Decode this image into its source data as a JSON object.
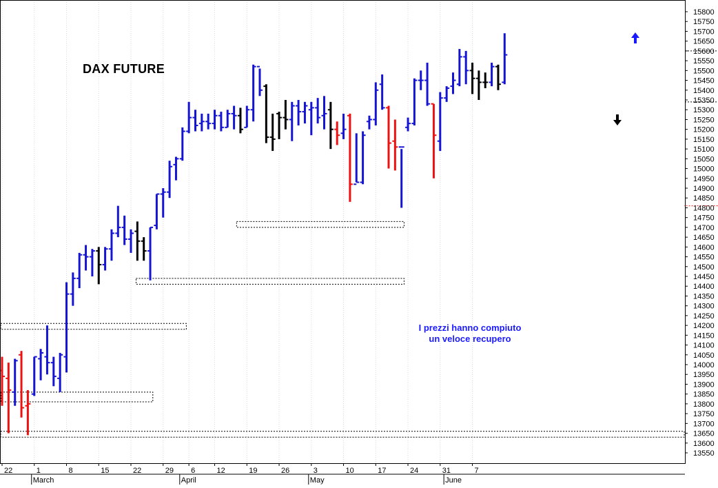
{
  "chart_data": {
    "type": "ohlc",
    "title": "DAX FUTURE",
    "annotation_lines": [
      "I prezzi hanno compiuto",
      "un veloce recupero"
    ],
    "ylim": [
      13520,
      15830
    ],
    "y_ticks": [
      13550,
      13600,
      13650,
      13700,
      13750,
      13800,
      13850,
      13900,
      13950,
      14000,
      14050,
      14100,
      14150,
      14200,
      14250,
      14300,
      14350,
      14400,
      14450,
      14500,
      14550,
      14600,
      14650,
      14700,
      14750,
      14800,
      14850,
      14900,
      14950,
      15000,
      15050,
      15100,
      15150,
      15200,
      15250,
      15300,
      15350,
      15400,
      15450,
      15500,
      15550,
      15600,
      15650,
      15700,
      15750,
      15800
    ],
    "x_ticks": [
      {
        "label": "22",
        "bar": 0
      },
      {
        "label": "1",
        "bar": 5
      },
      {
        "label": "8",
        "bar": 10
      },
      {
        "label": "15",
        "bar": 15
      },
      {
        "label": "22",
        "bar": 20
      },
      {
        "label": "29",
        "bar": 25
      },
      {
        "label": "6",
        "bar": 29
      },
      {
        "label": "12",
        "bar": 33
      },
      {
        "label": "19",
        "bar": 38
      },
      {
        "label": "26",
        "bar": 43
      },
      {
        "label": "3",
        "bar": 48
      },
      {
        "label": "10",
        "bar": 53
      },
      {
        "label": "17",
        "bar": 58
      },
      {
        "label": "24",
        "bar": 63
      },
      {
        "label": "31",
        "bar": 68
      },
      {
        "label": "7",
        "bar": 73
      }
    ],
    "months": [
      {
        "label": "March",
        "bar": 5
      },
      {
        "label": "April",
        "bar": 28
      },
      {
        "label": "May",
        "bar": 48
      },
      {
        "label": "June",
        "bar": 69
      }
    ],
    "bars": [
      {
        "o": 13970,
        "h": 14040,
        "l": 13790,
        "c": 13940,
        "color": "red"
      },
      {
        "o": 13930,
        "h": 14010,
        "l": 13650,
        "c": 13870,
        "color": "red"
      },
      {
        "o": 13860,
        "h": 14030,
        "l": 13790,
        "c": 14020,
        "color": "blue"
      },
      {
        "o": 14050,
        "h": 14070,
        "l": 13730,
        "c": 13780,
        "color": "red"
      },
      {
        "o": 13790,
        "h": 13870,
        "l": 13640,
        "c": 13800,
        "color": "red"
      },
      {
        "o": 13850,
        "h": 14040,
        "l": 13840,
        "c": 14040,
        "color": "blue"
      },
      {
        "o": 14030,
        "h": 14080,
        "l": 13920,
        "c": 14060,
        "color": "blue"
      },
      {
        "o": 14040,
        "h": 14200,
        "l": 13950,
        "c": 14010,
        "color": "blue"
      },
      {
        "o": 14010,
        "h": 14040,
        "l": 13890,
        "c": 13940,
        "color": "blue"
      },
      {
        "o": 13930,
        "h": 14060,
        "l": 13860,
        "c": 14050,
        "color": "blue"
      },
      {
        "o": 14040,
        "h": 14420,
        "l": 13960,
        "c": 14360,
        "color": "blue"
      },
      {
        "o": 14360,
        "h": 14470,
        "l": 14300,
        "c": 14440,
        "color": "blue"
      },
      {
        "o": 14440,
        "h": 14570,
        "l": 14390,
        "c": 14560,
        "color": "blue"
      },
      {
        "o": 14560,
        "h": 14610,
        "l": 14480,
        "c": 14550,
        "color": "blue"
      },
      {
        "o": 14550,
        "h": 14590,
        "l": 14450,
        "c": 14580,
        "color": "blue"
      },
      {
        "o": 14580,
        "h": 14600,
        "l": 14410,
        "c": 14510,
        "color": "black"
      },
      {
        "o": 14510,
        "h": 14600,
        "l": 14480,
        "c": 14590,
        "color": "blue"
      },
      {
        "o": 14590,
        "h": 14690,
        "l": 14530,
        "c": 14670,
        "color": "blue"
      },
      {
        "o": 14670,
        "h": 14810,
        "l": 14650,
        "c": 14700,
        "color": "blue"
      },
      {
        "o": 14700,
        "h": 14760,
        "l": 14610,
        "c": 14640,
        "color": "blue"
      },
      {
        "o": 14640,
        "h": 14690,
        "l": 14570,
        "c": 14670,
        "color": "blue"
      },
      {
        "o": 14680,
        "h": 14730,
        "l": 14530,
        "c": 14630,
        "color": "black"
      },
      {
        "o": 14630,
        "h": 14650,
        "l": 14530,
        "c": 14580,
        "color": "black"
      },
      {
        "o": 14580,
        "h": 14700,
        "l": 14430,
        "c": 14700,
        "color": "blue"
      },
      {
        "o": 14710,
        "h": 14870,
        "l": 14690,
        "c": 14870,
        "color": "blue"
      },
      {
        "o": 14870,
        "h": 14900,
        "l": 14750,
        "c": 14880,
        "color": "blue"
      },
      {
        "o": 14880,
        "h": 15040,
        "l": 14850,
        "c": 15010,
        "color": "blue"
      },
      {
        "o": 15020,
        "h": 15060,
        "l": 14940,
        "c": 15050,
        "color": "blue"
      },
      {
        "o": 15050,
        "h": 15210,
        "l": 15040,
        "c": 15190,
        "color": "blue"
      },
      {
        "o": 15190,
        "h": 15340,
        "l": 15180,
        "c": 15260,
        "color": "blue"
      },
      {
        "o": 15260,
        "h": 15300,
        "l": 15190,
        "c": 15220,
        "color": "blue"
      },
      {
        "o": 15230,
        "h": 15280,
        "l": 15190,
        "c": 15240,
        "color": "blue"
      },
      {
        "o": 15240,
        "h": 15280,
        "l": 15200,
        "c": 15230,
        "color": "blue"
      },
      {
        "o": 15230,
        "h": 15300,
        "l": 15200,
        "c": 15270,
        "color": "blue"
      },
      {
        "o": 15270,
        "h": 15290,
        "l": 15190,
        "c": 15210,
        "color": "blue"
      },
      {
        "o": 15210,
        "h": 15300,
        "l": 15210,
        "c": 15280,
        "color": "blue"
      },
      {
        "o": 15280,
        "h": 15320,
        "l": 15200,
        "c": 15270,
        "color": "blue"
      },
      {
        "o": 15270,
        "h": 15310,
        "l": 15180,
        "c": 15200,
        "color": "black"
      },
      {
        "o": 15210,
        "h": 15320,
        "l": 15210,
        "c": 15300,
        "color": "blue"
      },
      {
        "o": 15300,
        "h": 15530,
        "l": 15240,
        "c": 15520,
        "color": "blue"
      },
      {
        "o": 15520,
        "h": 15510,
        "l": 15370,
        "c": 15400,
        "color": "blue"
      },
      {
        "o": 15420,
        "h": 15430,
        "l": 15130,
        "c": 15160,
        "color": "black"
      },
      {
        "o": 15160,
        "h": 15280,
        "l": 15090,
        "c": 15150,
        "color": "black"
      },
      {
        "o": 15280,
        "h": 15290,
        "l": 15150,
        "c": 15260,
        "color": "black"
      },
      {
        "o": 15260,
        "h": 15350,
        "l": 15200,
        "c": 15250,
        "color": "black"
      },
      {
        "o": 15250,
        "h": 15340,
        "l": 15140,
        "c": 15320,
        "color": "blue"
      },
      {
        "o": 15320,
        "h": 15350,
        "l": 15220,
        "c": 15290,
        "color": "blue"
      },
      {
        "o": 15290,
        "h": 15340,
        "l": 15230,
        "c": 15320,
        "color": "blue"
      },
      {
        "o": 15300,
        "h": 15340,
        "l": 15170,
        "c": 15310,
        "color": "blue"
      },
      {
        "o": 15310,
        "h": 15360,
        "l": 15230,
        "c": 15260,
        "color": "blue"
      },
      {
        "o": 15270,
        "h": 15370,
        "l": 15200,
        "c": 15280,
        "color": "blue"
      },
      {
        "o": 15300,
        "h": 15340,
        "l": 15100,
        "c": 15200,
        "color": "black"
      },
      {
        "o": 15200,
        "h": 15240,
        "l": 15120,
        "c": 15170,
        "color": "red"
      },
      {
        "o": 15180,
        "h": 15280,
        "l": 15150,
        "c": 15200,
        "color": "blue"
      },
      {
        "o": 15270,
        "h": 15280,
        "l": 14830,
        "c": 14920,
        "color": "red"
      },
      {
        "o": 14920,
        "h": 15180,
        "l": 14930,
        "c": 14930,
        "color": "blue"
      },
      {
        "o": 14930,
        "h": 15190,
        "l": 14920,
        "c": 15170,
        "color": "blue"
      },
      {
        "o": 15240,
        "h": 15270,
        "l": 15200,
        "c": 15250,
        "color": "blue"
      },
      {
        "o": 15250,
        "h": 15440,
        "l": 15220,
        "c": 15400,
        "color": "blue"
      },
      {
        "o": 15430,
        "h": 15480,
        "l": 15300,
        "c": 15310,
        "color": "blue"
      },
      {
        "o": 15310,
        "h": 15320,
        "l": 15000,
        "c": 15130,
        "color": "red"
      },
      {
        "o": 15140,
        "h": 15250,
        "l": 14990,
        "c": 15110,
        "color": "red"
      },
      {
        "o": 15110,
        "h": 15100,
        "l": 14800,
        "c": 15110,
        "color": "blue"
      },
      {
        "o": 15210,
        "h": 15260,
        "l": 15190,
        "c": 15230,
        "color": "blue"
      },
      {
        "o": 15230,
        "h": 15460,
        "l": 15220,
        "c": 15450,
        "color": "blue"
      },
      {
        "o": 15450,
        "h": 15500,
        "l": 15400,
        "c": 15450,
        "color": "blue"
      },
      {
        "o": 15450,
        "h": 15540,
        "l": 15320,
        "c": 15330,
        "color": "blue"
      },
      {
        "o": 15330,
        "h": 15330,
        "l": 14950,
        "c": 15170,
        "color": "red"
      },
      {
        "o": 15140,
        "h": 15390,
        "l": 15090,
        "c": 15360,
        "color": "blue"
      },
      {
        "o": 15360,
        "h": 15420,
        "l": 15340,
        "c": 15410,
        "color": "blue"
      },
      {
        "o": 15420,
        "h": 15490,
        "l": 15380,
        "c": 15450,
        "color": "blue"
      },
      {
        "o": 15430,
        "h": 15610,
        "l": 15420,
        "c": 15570,
        "color": "blue"
      },
      {
        "o": 15570,
        "h": 15600,
        "l": 15430,
        "c": 15500,
        "color": "blue"
      },
      {
        "o": 15500,
        "h": 15540,
        "l": 15380,
        "c": 15460,
        "color": "black"
      },
      {
        "o": 15460,
        "h": 15500,
        "l": 15350,
        "c": 15440,
        "color": "black"
      },
      {
        "o": 15440,
        "h": 15490,
        "l": 15410,
        "c": 15440,
        "color": "black"
      },
      {
        "o": 15440,
        "h": 15540,
        "l": 15420,
        "c": 15520,
        "color": "blue"
      },
      {
        "o": 15520,
        "h": 15530,
        "l": 15400,
        "c": 15430,
        "color": "black"
      },
      {
        "o": 15440,
        "h": 15690,
        "l": 15430,
        "c": 15580,
        "color": "blue"
      }
    ],
    "support_resistance": [
      {
        "low": 13630,
        "high": 13660,
        "x_from": -1,
        "x_to": 999
      },
      {
        "low": 13810,
        "high": 13860,
        "x_from": -1,
        "x_to": 9
      },
      {
        "low": 14180,
        "high": 14210,
        "x_from": -1,
        "x_to": 11
      },
      {
        "low": 14410,
        "high": 14440,
        "x_from": 8,
        "x_to": 24
      },
      {
        "low": 14700,
        "high": 14730,
        "x_from": 14,
        "x_to": 24
      },
      {
        "low": 14810,
        "high": 14810,
        "x_from": 47,
        "x_to": 53
      },
      {
        "low": 15340,
        "high": 15340,
        "x_from": 55,
        "x_to": 63
      },
      {
        "low": 15600,
        "high": 15600,
        "x_from": 55,
        "x_to": 63
      }
    ],
    "arrows": [
      {
        "direction": "up",
        "color": "#1a1aff"
      },
      {
        "direction": "down",
        "color": "#000000"
      }
    ],
    "grid": true
  },
  "colors": {
    "blue": "#1414d2",
    "red": "#ee1111",
    "black": "#000000",
    "grid": "#d9d9d9"
  }
}
